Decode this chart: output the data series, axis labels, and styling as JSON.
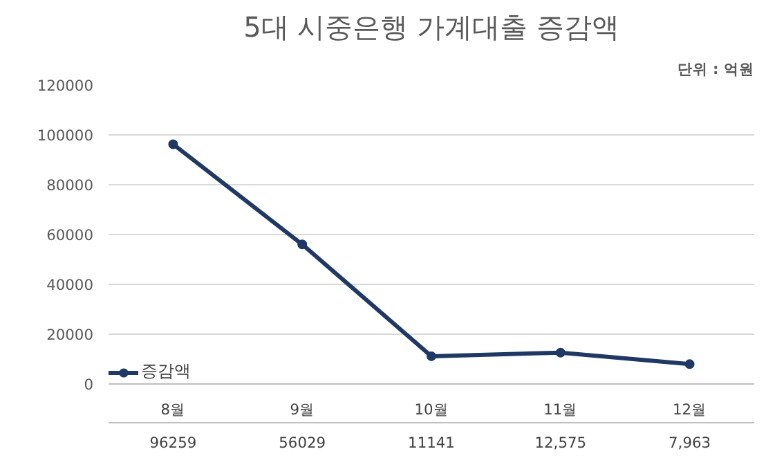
{
  "chart_data": {
    "type": "line",
    "title": "5대 시중은행 가계대출 증감액",
    "annotations": [
      "단위 : 억원"
    ],
    "categories": [
      "8월",
      "9월",
      "10월",
      "11월",
      "12월"
    ],
    "series": [
      {
        "name": "증감액",
        "color": "#203864",
        "values": [
          96259,
          56029,
          11141,
          12575,
          7963
        ],
        "value_labels": [
          "96259",
          "56029",
          "11141",
          "12,575",
          "7,963"
        ]
      }
    ],
    "ylim": [
      0,
      120000
    ],
    "yticks": [
      0,
      20000,
      40000,
      60000,
      80000,
      100000,
      120000
    ],
    "grid": "y",
    "legend": "bottom left",
    "marker": "circle",
    "line_style": "solid"
  }
}
